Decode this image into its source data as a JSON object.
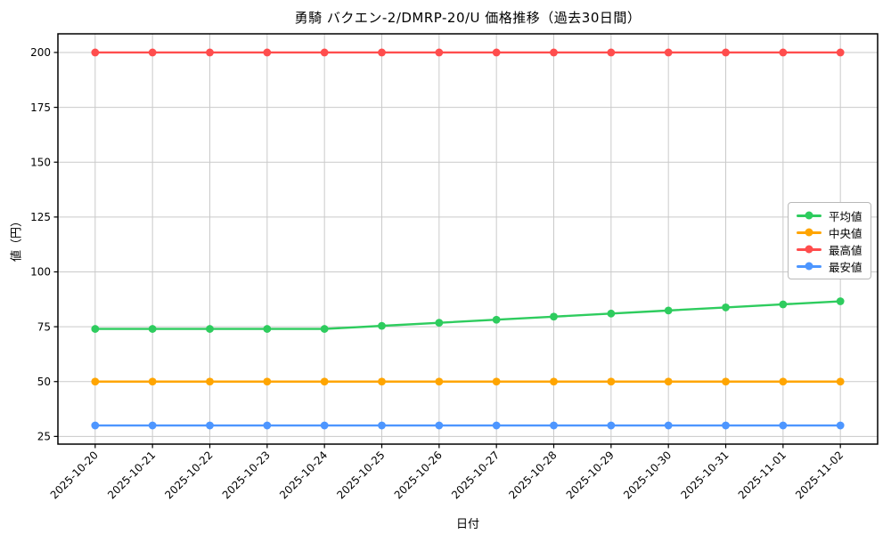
{
  "chart_data": {
    "type": "line",
    "title": "勇騎 バクエン-2/DMRP-20/U 価格推移（過去30日間）",
    "xlabel": "日付",
    "ylabel": "値（円）",
    "x": [
      "2025-10-20",
      "2025-10-21",
      "2025-10-22",
      "2025-10-23",
      "2025-10-24",
      "2025-10-25",
      "2025-10-26",
      "2025-10-27",
      "2025-10-28",
      "2025-10-29",
      "2025-10-30",
      "2025-10-31",
      "2025-11-01",
      "2025-11-02"
    ],
    "series": [
      {
        "id": "average",
        "name": "平均値",
        "color": "#2ecc5e",
        "values": [
          74,
          74,
          74,
          74,
          74,
          75.4,
          76.8,
          78.2,
          79.6,
          81.0,
          82.4,
          83.8,
          85.2,
          86.6
        ]
      },
      {
        "id": "median",
        "name": "中央値",
        "color": "#ffa500",
        "values": [
          50,
          50,
          50,
          50,
          50,
          50,
          50,
          50,
          50,
          50,
          50,
          50,
          50,
          50
        ]
      },
      {
        "id": "max",
        "name": "最高値",
        "color": "#ff4d4d",
        "values": [
          200,
          200,
          200,
          200,
          200,
          200,
          200,
          200,
          200,
          200,
          200,
          200,
          200,
          200
        ]
      },
      {
        "id": "min",
        "name": "最安値",
        "color": "#4d96ff",
        "values": [
          30,
          30,
          30,
          30,
          30,
          30,
          30,
          30,
          30,
          30,
          30,
          30,
          30,
          30
        ]
      }
    ],
    "yticks": [
      25,
      50,
      75,
      100,
      125,
      150,
      175,
      200
    ],
    "ylim": [
      21.5,
      208.5
    ],
    "grid": true,
    "grid_color": "#cacaca",
    "legend_position": "center right"
  }
}
